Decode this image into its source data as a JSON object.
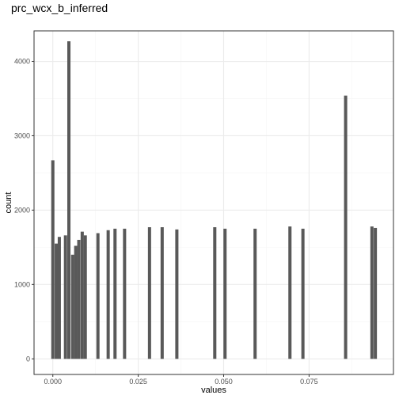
{
  "chart_data": {
    "type": "bar",
    "title": "prc_wcx_b_inferred",
    "xlabel": "values",
    "ylabel": "count",
    "xlim": [
      -0.0055,
      0.0997
    ],
    "ylim": [
      -210,
      4410
    ],
    "x_ticks": [
      0.0,
      0.025,
      0.05,
      0.075
    ],
    "x_tick_labels": [
      "0.000",
      "0.025",
      "0.050",
      "0.075"
    ],
    "y_ticks": [
      0,
      1000,
      2000,
      3000,
      4000
    ],
    "y_tick_labels": [
      "0",
      "1000",
      "2000",
      "3000",
      "4000"
    ],
    "bin_width": 0.00093,
    "grid": true,
    "bar_color": "#595959",
    "panel_border_color": "#333333",
    "grid_major_color": "#ebebeb",
    "grid_minor_color": "#f5f5f5",
    "bins": [
      {
        "x": 0.0,
        "count": 2670
      },
      {
        "x": 0.001,
        "count": 1550
      },
      {
        "x": 0.0019,
        "count": 1640
      },
      {
        "x": 0.0037,
        "count": 1660
      },
      {
        "x": 0.0047,
        "count": 4270
      },
      {
        "x": 0.0058,
        "count": 1400
      },
      {
        "x": 0.0067,
        "count": 1520
      },
      {
        "x": 0.0076,
        "count": 1600
      },
      {
        "x": 0.0086,
        "count": 1710
      },
      {
        "x": 0.0095,
        "count": 1660
      },
      {
        "x": 0.0132,
        "count": 1690
      },
      {
        "x": 0.0162,
        "count": 1730
      },
      {
        "x": 0.0182,
        "count": 1750
      },
      {
        "x": 0.021,
        "count": 1750
      },
      {
        "x": 0.0283,
        "count": 1770
      },
      {
        "x": 0.032,
        "count": 1770
      },
      {
        "x": 0.0363,
        "count": 1740
      },
      {
        "x": 0.0474,
        "count": 1770
      },
      {
        "x": 0.0504,
        "count": 1750
      },
      {
        "x": 0.0592,
        "count": 1750
      },
      {
        "x": 0.0694,
        "count": 1780
      },
      {
        "x": 0.0732,
        "count": 1750
      },
      {
        "x": 0.0857,
        "count": 3540
      },
      {
        "x": 0.0934,
        "count": 1780
      },
      {
        "x": 0.0944,
        "count": 1760
      }
    ]
  }
}
